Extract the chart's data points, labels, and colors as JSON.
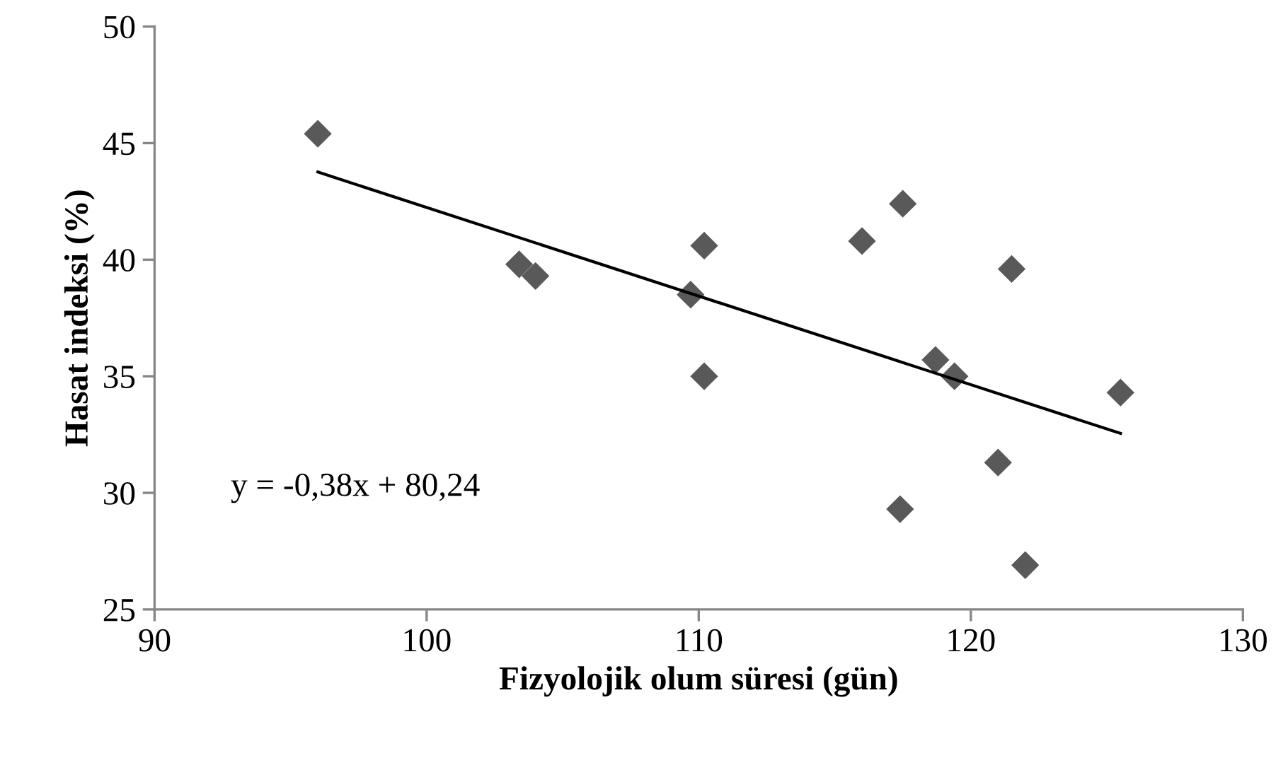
{
  "chart_data": {
    "type": "scatter",
    "xlabel": "Fizyolojik olum süresi (gün)",
    "ylabel": "Hasat indeksi (%)",
    "xlim": [
      90,
      130
    ],
    "xticks": [
      90,
      100,
      110,
      120,
      130
    ],
    "ylim": [
      25,
      50
    ],
    "yticks": [
      25,
      30,
      35,
      40,
      45,
      50
    ],
    "grid": false,
    "legend": false,
    "marker": "diamond",
    "annotations": [
      "y = -0,38x + 80,24"
    ],
    "series": [
      {
        "color": "#595959",
        "x": [
          96.0,
          103.4,
          104.0,
          109.7,
          110.2,
          110.2,
          116.0,
          117.5,
          121.5,
          118.7,
          119.4,
          125.5,
          121.0,
          117.4,
          122.0
        ],
        "values": [
          45.4,
          39.8,
          39.3,
          38.5,
          40.6,
          35.0,
          40.8,
          42.4,
          39.6,
          35.7,
          35.0,
          34.3,
          31.3,
          29.3,
          26.9
        ]
      },
      {
        "type": "line",
        "color": "#000000",
        "marker": "none",
        "line_style": "solid",
        "x": [
          96.0,
          125.5
        ],
        "values": [
          43.76,
          32.55
        ]
      }
    ]
  }
}
